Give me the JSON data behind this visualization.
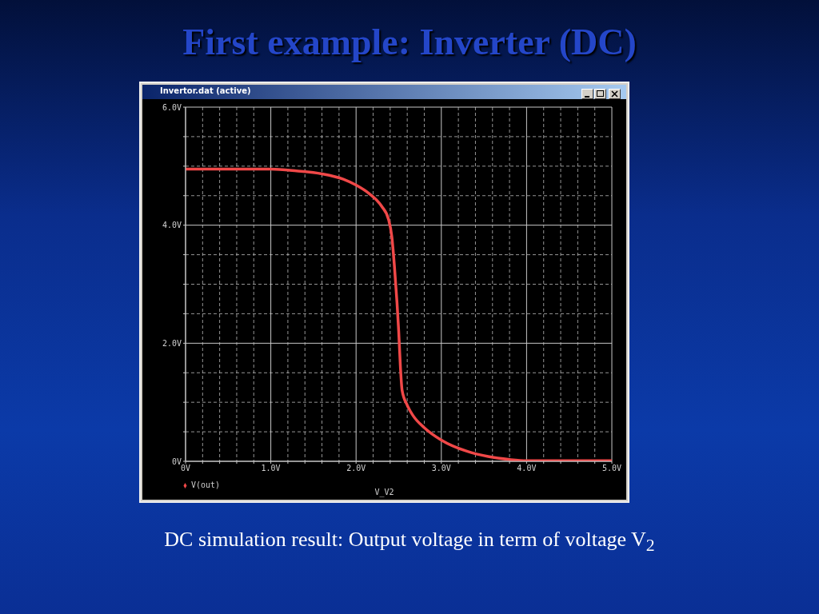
{
  "chart_data": {
    "type": "line",
    "title": "First example: Inverter (DC)",
    "subtitle": "Invertor.dat (active)",
    "xlabel": "V_V2",
    "annotations": [
      "DC simulation result: Output voltage in term of voltage V$_{2}$"
    ],
    "x": [
      0,
      0.5,
      1.0,
      1.3,
      1.6,
      1.85,
      2.0,
      2.15,
      2.3,
      2.38,
      2.42,
      2.45,
      2.48,
      2.5,
      2.52,
      2.54,
      2.6,
      2.67,
      2.8,
      3.0,
      3.3,
      3.55,
      3.8,
      4.0,
      4.5,
      5.0
    ],
    "series": [
      {
        "name": "V(out)",
        "color": "#f04848",
        "values": [
          4.95,
          4.95,
          4.95,
          4.92,
          4.87,
          4.78,
          4.68,
          4.54,
          4.32,
          4.1,
          3.8,
          3.3,
          2.69,
          2.2,
          1.6,
          1.2,
          0.95,
          0.77,
          0.57,
          0.36,
          0.17,
          0.08,
          0.03,
          0.01,
          0.01,
          0.01
        ]
      }
    ],
    "xlim": [
      0,
      5
    ],
    "ylim": [
      0,
      6
    ],
    "xticks": [
      {
        "value": 0,
        "label": "0V"
      },
      {
        "value": 0.2,
        "label": null
      },
      {
        "value": 0.4,
        "label": null
      },
      {
        "value": 0.6,
        "label": null
      },
      {
        "value": 0.8,
        "label": null
      },
      {
        "value": 1,
        "label": "1.0V"
      },
      {
        "value": 1.2,
        "label": null
      },
      {
        "value": 1.4,
        "label": null
      },
      {
        "value": 1.6,
        "label": null
      },
      {
        "value": 1.8,
        "label": null
      },
      {
        "value": 2,
        "label": "2.0V"
      },
      {
        "value": 2.2,
        "label": null
      },
      {
        "value": 2.4,
        "label": null
      },
      {
        "value": 2.6,
        "label": null
      },
      {
        "value": 2.8,
        "label": null
      },
      {
        "value": 3,
        "label": "3.0V"
      },
      {
        "value": 3.2,
        "label": null
      },
      {
        "value": 3.4,
        "label": null
      },
      {
        "value": 3.6,
        "label": null
      },
      {
        "value": 3.8,
        "label": null
      },
      {
        "value": 4,
        "label": "4.0V"
      },
      {
        "value": 4.2,
        "label": null
      },
      {
        "value": 4.4,
        "label": null
      },
      {
        "value": 4.6,
        "label": null
      },
      {
        "value": 4.8,
        "label": null
      },
      {
        "value": 5,
        "label": "5.0V"
      }
    ],
    "yticks": [
      {
        "value": 0,
        "label": "0V"
      },
      {
        "value": 0.5,
        "label": null
      },
      {
        "value": 1,
        "label": null
      },
      {
        "value": 1.5,
        "label": null
      },
      {
        "value": 2,
        "label": "2.0V"
      },
      {
        "value": 2.5,
        "label": null
      },
      {
        "value": 3,
        "label": null
      },
      {
        "value": 3.5,
        "label": null
      },
      {
        "value": 4,
        "label": "4.0V"
      },
      {
        "value": 4.5,
        "label": null
      },
      {
        "value": 5,
        "label": null
      },
      {
        "value": 5.5,
        "label": null
      },
      {
        "value": 6,
        "label": "6.0V"
      }
    ],
    "grid": true,
    "legend": "bottom left"
  }
}
